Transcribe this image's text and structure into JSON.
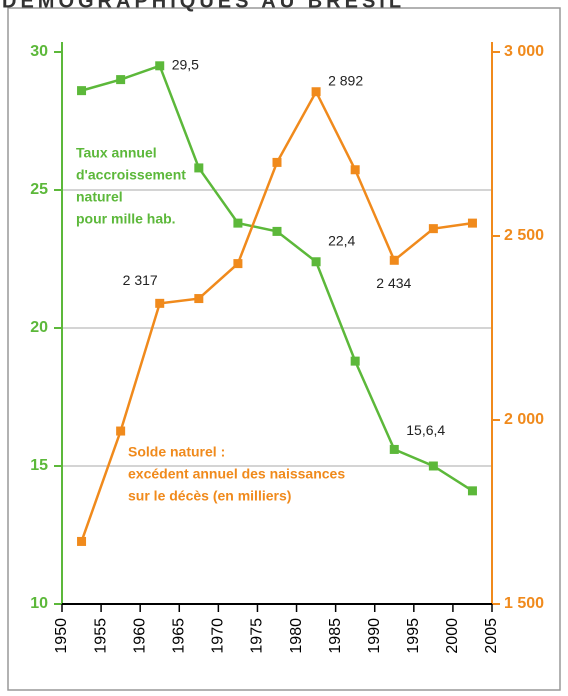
{
  "chart_data": {
    "type": "line",
    "title": "DÉMOGRAPHIQUES AU BRÉSIL",
    "annotations": [
      [
        "Taux annuel",
        "d'accroissement",
        "naturel",
        "pour mille hab."
      ],
      [
        "Solde naturel :",
        "excédent annuel des naissances",
        "sur le décès (en milliers)"
      ]
    ],
    "x": [
      1952.5,
      1957.5,
      1962.5,
      1967.5,
      1972.5,
      1977.5,
      1982.5,
      1987.5,
      1992.5,
      1997.5,
      2002.5
    ],
    "xlim": [
      1950,
      2005
    ],
    "xticks": [
      1950,
      1955,
      1960,
      1965,
      1970,
      1975,
      1980,
      1985,
      1990,
      1995,
      2000,
      2005
    ],
    "ylim": [
      10,
      30
    ],
    "yticks": [
      10,
      15,
      20,
      25,
      30
    ],
    "y2lim": [
      1500,
      3000
    ],
    "y2ticks": [
      {
        "value": 1500,
        "label": "1 500"
      },
      {
        "value": 2000,
        "label": "2 000"
      },
      {
        "value": 2500,
        "label": "2 500"
      },
      {
        "value": 3000,
        "label": "3 000"
      }
    ],
    "grid": true,
    "series": [
      {
        "color": "#5cb83a",
        "values": [
          28.6,
          29.0,
          29.5,
          25.8,
          23.8,
          23.5,
          22.4,
          18.8,
          15.6,
          15.0,
          14.1
        ],
        "value_labels": [
          null,
          null,
          "29,5",
          null,
          null,
          null,
          "22,4",
          null,
          "15,6,4",
          null,
          null
        ]
      },
      {
        "color": "#f08a1c",
        "axis": "y2",
        "values": [
          1670,
          1970,
          2317,
          2330,
          2425,
          2700,
          2892,
          2680,
          2434,
          2520,
          2535
        ],
        "value_labels": [
          null,
          null,
          "2 317",
          null,
          null,
          null,
          "2 892",
          null,
          "2 434",
          null,
          null
        ]
      }
    ]
  }
}
